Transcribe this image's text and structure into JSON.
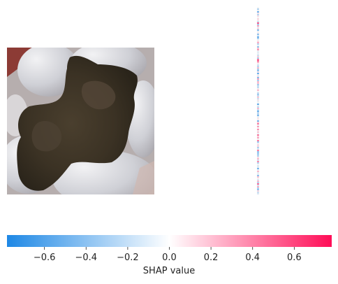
{
  "chart_data": {
    "type": "heatmap",
    "title": "",
    "panels": [
      {
        "name": "input-image",
        "content": "dental photograph of a molar with a dark brown carious lesion"
      },
      {
        "name": "shap-map",
        "content": "SHAP attribution map compressed to a thin vertical strip of faint red and blue values"
      }
    ],
    "colorbar": {
      "label": "SHAP value",
      "range": [
        -0.78,
        0.78
      ],
      "ticks": [
        -0.6,
        -0.4,
        -0.2,
        0.0,
        0.2,
        0.4,
        0.6
      ],
      "tick_labels": [
        "−0.6",
        "−0.4",
        "−0.2",
        "0.0",
        "0.2",
        "0.4",
        "0.6"
      ],
      "colors": {
        "negative": "#1e88e5",
        "neutral": "#ffffff",
        "positive": "#ff0d57"
      }
    }
  }
}
